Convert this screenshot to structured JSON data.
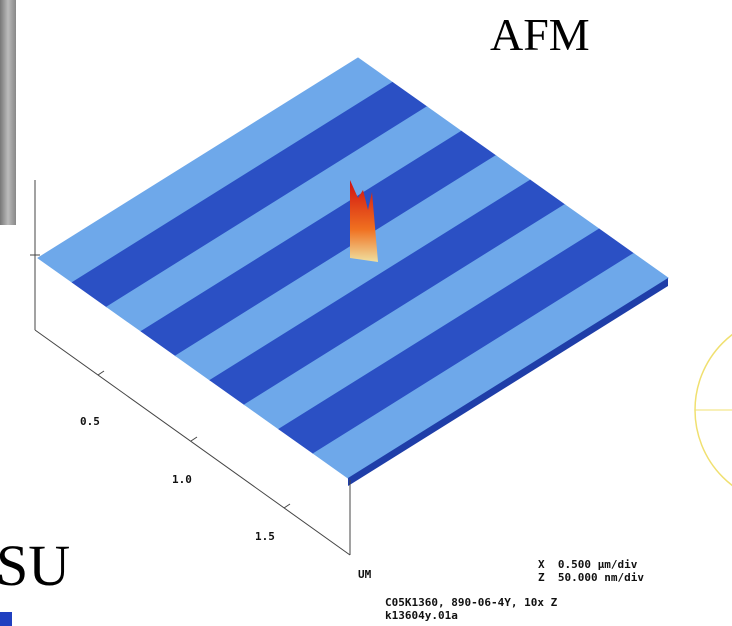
{
  "title": "AFM",
  "axis": {
    "ticks": [
      "0.5",
      "1.0",
      "1.5"
    ],
    "unit": "UM"
  },
  "scale": {
    "x": "X  0.500 µm/div",
    "z": "Z  50.000 nm/div"
  },
  "caption": {
    "line1": "C05K1360, 890-06-4Y, 10x Z",
    "line2": "k13604y.01a"
  },
  "side_text": "SU"
}
